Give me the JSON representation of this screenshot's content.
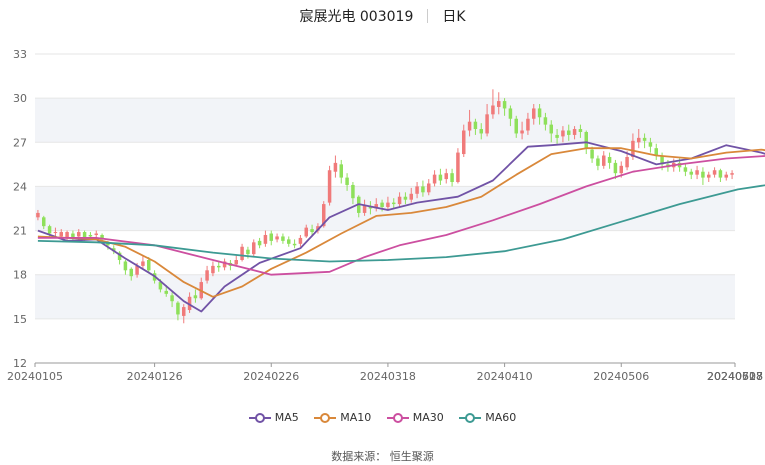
{
  "header": {
    "name": "宸展光电 003019",
    "period": "日K"
  },
  "legend": [
    {
      "label": "MA5",
      "color": "#7153a6"
    },
    {
      "label": "MA10",
      "color": "#d9883a"
    },
    {
      "label": "MA30",
      "color": "#cc4fa0"
    },
    {
      "label": "MA60",
      "color": "#3d9a93"
    }
  ],
  "source": "数据来源： 恒生聚源",
  "colors": {
    "up": "#f07a7a",
    "down": "#8ee05a",
    "grid": "#e6e6e6",
    "band": "#f2f4f8"
  },
  "chart_data": {
    "type": "candlestick",
    "title": "宸展光电 003019 日K",
    "ylim": [
      12,
      33
    ],
    "yticks": [
      12,
      15,
      18,
      21,
      24,
      27,
      30,
      33
    ],
    "xtick_labels": [
      "20240105",
      "20240126",
      "20240226",
      "20240318",
      "20240410",
      "20240506",
      "20240527",
      "20240618",
      "20240708"
    ],
    "xtick_index": [
      0,
      20,
      40,
      60,
      80,
      100,
      120,
      140,
      160
    ],
    "candles": [
      [
        21.9,
        22.2,
        22.4,
        21.7
      ],
      [
        21.9,
        21.3,
        22.0,
        21.1
      ],
      [
        21.3,
        20.8,
        21.4,
        20.6
      ],
      [
        20.9,
        20.9,
        21.2,
        20.6
      ],
      [
        20.6,
        20.9,
        21.1,
        20.4
      ],
      [
        20.5,
        20.9,
        21.0,
        20.2
      ],
      [
        20.8,
        20.5,
        21.0,
        20.3
      ],
      [
        20.6,
        20.9,
        21.1,
        20.3
      ],
      [
        20.9,
        20.5,
        21.0,
        20.3
      ],
      [
        20.7,
        20.6,
        20.9,
        20.4
      ],
      [
        20.7,
        20.8,
        21.0,
        20.5
      ],
      [
        20.7,
        20.4,
        20.8,
        20.2
      ],
      [
        20.2,
        20.0,
        20.3,
        19.7
      ],
      [
        19.8,
        19.6,
        20.0,
        19.4
      ],
      [
        19.5,
        19.0,
        19.6,
        18.7
      ],
      [
        18.9,
        18.3,
        19.0,
        18.0
      ],
      [
        18.4,
        17.9,
        18.5,
        17.6
      ],
      [
        18.0,
        18.6,
        18.8,
        17.8
      ],
      [
        18.6,
        18.9,
        19.3,
        18.4
      ],
      [
        19.0,
        18.3,
        19.2,
        18.1
      ],
      [
        18.1,
        17.6,
        18.3,
        17.4
      ],
      [
        17.5,
        17.0,
        17.7,
        16.8
      ],
      [
        16.9,
        16.7,
        17.3,
        16.5
      ],
      [
        16.6,
        16.2,
        16.8,
        15.8
      ],
      [
        16.1,
        15.3,
        16.2,
        14.9
      ],
      [
        15.2,
        15.8,
        16.0,
        14.7
      ],
      [
        15.6,
        16.5,
        16.8,
        15.4
      ],
      [
        16.6,
        16.4,
        17.0,
        16.1
      ],
      [
        16.4,
        17.5,
        17.8,
        16.3
      ],
      [
        17.6,
        18.3,
        18.6,
        17.4
      ],
      [
        18.1,
        18.6,
        18.9,
        17.9
      ],
      [
        18.6,
        18.5,
        18.9,
        18.2
      ],
      [
        18.5,
        18.9,
        19.1,
        18.3
      ],
      [
        18.8,
        18.6,
        19.0,
        18.3
      ],
      [
        18.7,
        19.0,
        19.3,
        18.6
      ],
      [
        19.0,
        19.9,
        20.1,
        18.9
      ],
      [
        19.7,
        19.4,
        19.9,
        19.1
      ],
      [
        19.4,
        20.2,
        20.4,
        19.2
      ],
      [
        20.3,
        20.0,
        20.5,
        19.8
      ],
      [
        20.1,
        20.7,
        21.0,
        19.9
      ],
      [
        20.8,
        20.3,
        21.0,
        20.0
      ],
      [
        20.4,
        20.6,
        20.8,
        20.2
      ],
      [
        20.6,
        20.3,
        20.8,
        20.1
      ],
      [
        20.4,
        20.1,
        20.6,
        19.9
      ],
      [
        20.1,
        20.0,
        20.4,
        19.8
      ],
      [
        20.1,
        20.5,
        20.7,
        19.9
      ],
      [
        20.6,
        21.2,
        21.4,
        20.5
      ],
      [
        21.1,
        20.9,
        21.4,
        20.6
      ],
      [
        21.0,
        21.3,
        21.5,
        20.8
      ],
      [
        21.3,
        22.8,
        23.0,
        21.2
      ],
      [
        22.9,
        25.1,
        25.4,
        22.7
      ],
      [
        25.0,
        25.6,
        26.1,
        24.6
      ],
      [
        25.5,
        24.6,
        25.8,
        24.2
      ],
      [
        24.6,
        24.1,
        24.9,
        23.7
      ],
      [
        24.1,
        23.2,
        24.3,
        22.8
      ],
      [
        23.3,
        22.2,
        23.4,
        21.9
      ],
      [
        22.2,
        22.7,
        23.1,
        22.0
      ],
      [
        22.6,
        22.5,
        23.0,
        22.1
      ],
      [
        22.5,
        22.8,
        23.2,
        22.3
      ],
      [
        22.9,
        22.6,
        23.1,
        22.3
      ],
      [
        22.6,
        22.9,
        23.3,
        22.4
      ],
      [
        22.9,
        22.8,
        23.2,
        22.5
      ],
      [
        22.8,
        23.3,
        23.6,
        22.6
      ],
      [
        23.3,
        23.1,
        23.6,
        22.8
      ],
      [
        23.1,
        23.5,
        23.9,
        22.9
      ],
      [
        23.5,
        24.0,
        24.3,
        23.2
      ],
      [
        24.0,
        23.6,
        24.4,
        23.3
      ],
      [
        23.6,
        24.2,
        24.5,
        23.4
      ],
      [
        24.2,
        24.8,
        25.1,
        24.0
      ],
      [
        24.8,
        24.4,
        25.2,
        24.1
      ],
      [
        24.5,
        24.9,
        25.2,
        24.2
      ],
      [
        24.9,
        24.3,
        25.2,
        24.0
      ],
      [
        24.3,
        26.3,
        26.6,
        24.2
      ],
      [
        26.2,
        27.8,
        28.2,
        26.0
      ],
      [
        27.8,
        28.4,
        29.2,
        27.4
      ],
      [
        28.4,
        27.9,
        28.6,
        27.5
      ],
      [
        27.9,
        27.6,
        28.3,
        27.2
      ],
      [
        27.6,
        28.9,
        29.6,
        27.4
      ],
      [
        28.9,
        29.5,
        30.6,
        28.6
      ],
      [
        29.4,
        29.8,
        30.4,
        28.9
      ],
      [
        29.8,
        29.3,
        30.0,
        28.8
      ],
      [
        29.3,
        28.6,
        29.5,
        28.1
      ],
      [
        28.6,
        27.6,
        28.8,
        27.3
      ],
      [
        27.6,
        27.8,
        28.4,
        27.2
      ],
      [
        27.8,
        28.6,
        29.0,
        27.5
      ],
      [
        28.6,
        29.3,
        29.6,
        28.2
      ],
      [
        29.3,
        28.7,
        29.6,
        28.2
      ],
      [
        28.7,
        28.2,
        29.0,
        27.8
      ],
      [
        28.2,
        27.6,
        28.5,
        27.0
      ],
      [
        27.5,
        27.3,
        27.9,
        26.9
      ],
      [
        27.4,
        27.8,
        28.1,
        27.0
      ],
      [
        27.8,
        27.5,
        28.2,
        27.1
      ],
      [
        27.5,
        27.9,
        28.1,
        27.2
      ],
      [
        27.9,
        27.7,
        28.2,
        27.3
      ],
      [
        27.7,
        26.6,
        27.8,
        26.2
      ],
      [
        26.5,
        25.9,
        26.7,
        25.6
      ],
      [
        25.9,
        25.4,
        26.1,
        25.1
      ],
      [
        25.4,
        26.1,
        26.4,
        25.2
      ],
      [
        26.0,
        25.6,
        26.3,
        25.2
      ],
      [
        25.6,
        24.9,
        25.8,
        24.5
      ],
      [
        24.9,
        25.4,
        25.7,
        24.6
      ],
      [
        25.3,
        26.0,
        26.4,
        25.1
      ],
      [
        26.0,
        27.1,
        27.6,
        25.8
      ],
      [
        27.0,
        27.3,
        27.9,
        26.6
      ],
      [
        27.3,
        27.1,
        27.6,
        26.6
      ],
      [
        27.0,
        26.7,
        27.3,
        26.3
      ],
      [
        26.6,
        26.1,
        26.9,
        25.8
      ],
      [
        26.1,
        25.5,
        26.3,
        25.1
      ],
      [
        25.5,
        25.3,
        25.8,
        25.0
      ],
      [
        25.3,
        25.6,
        25.9,
        25.0
      ],
      [
        25.6,
        25.3,
        25.9,
        25.0
      ],
      [
        25.3,
        25.0,
        25.5,
        24.7
      ],
      [
        25.0,
        24.8,
        25.2,
        24.5
      ],
      [
        24.8,
        25.1,
        25.4,
        24.5
      ],
      [
        25.0,
        24.6,
        25.3,
        24.1
      ],
      [
        24.6,
        24.8,
        25.0,
        24.3
      ],
      [
        24.8,
        25.1,
        25.3,
        24.6
      ],
      [
        25.1,
        24.6,
        25.2,
        24.3
      ],
      [
        24.6,
        24.8,
        25.0,
        24.4
      ],
      [
        24.8,
        24.9,
        25.1,
        24.5
      ]
    ],
    "series": [
      {
        "name": "MA5",
        "color": "#7153a6",
        "points": [
          [
            0,
            21.0
          ],
          [
            5,
            20.3
          ],
          [
            10,
            20.4
          ],
          [
            15,
            19.1
          ],
          [
            20,
            17.9
          ],
          [
            25,
            16.2
          ],
          [
            28,
            15.5
          ],
          [
            32,
            17.2
          ],
          [
            38,
            18.8
          ],
          [
            45,
            19.8
          ],
          [
            50,
            21.9
          ],
          [
            55,
            22.8
          ],
          [
            60,
            22.4
          ],
          [
            65,
            22.9
          ],
          [
            72,
            23.3
          ],
          [
            78,
            24.4
          ],
          [
            84,
            26.7
          ],
          [
            88,
            26.8
          ],
          [
            94,
            27.0
          ],
          [
            100,
            26.4
          ],
          [
            106,
            25.5
          ],
          [
            112,
            25.9
          ],
          [
            118,
            26.8
          ],
          [
            124,
            26.3
          ],
          [
            130,
            25.5
          ],
          [
            136,
            25.3
          ],
          [
            160,
            24.9
          ]
        ]
      },
      {
        "name": "MA10",
        "color": "#d9883a",
        "points": [
          [
            0,
            20.6
          ],
          [
            5,
            20.5
          ],
          [
            10,
            20.4
          ],
          [
            15,
            19.9
          ],
          [
            20,
            18.9
          ],
          [
            25,
            17.5
          ],
          [
            30,
            16.5
          ],
          [
            35,
            17.2
          ],
          [
            40,
            18.4
          ],
          [
            46,
            19.5
          ],
          [
            52,
            20.8
          ],
          [
            58,
            22.0
          ],
          [
            64,
            22.2
          ],
          [
            70,
            22.6
          ],
          [
            76,
            23.3
          ],
          [
            82,
            24.8
          ],
          [
            88,
            26.2
          ],
          [
            94,
            26.6
          ],
          [
            100,
            26.6
          ],
          [
            106,
            26.1
          ],
          [
            112,
            25.9
          ],
          [
            118,
            26.3
          ],
          [
            124,
            26.5
          ],
          [
            130,
            26.1
          ],
          [
            136,
            25.6
          ],
          [
            142,
            25.3
          ],
          [
            160,
            25.1
          ]
        ]
      },
      {
        "name": "MA30",
        "color": "#cc4fa0",
        "points": [
          [
            0,
            20.5
          ],
          [
            10,
            20.5
          ],
          [
            20,
            20.0
          ],
          [
            30,
            19.0
          ],
          [
            40,
            18.0
          ],
          [
            50,
            18.2
          ],
          [
            56,
            19.2
          ],
          [
            62,
            20.0
          ],
          [
            70,
            20.7
          ],
          [
            78,
            21.7
          ],
          [
            86,
            22.8
          ],
          [
            94,
            24.0
          ],
          [
            102,
            25.0
          ],
          [
            110,
            25.5
          ],
          [
            118,
            25.9
          ],
          [
            126,
            26.1
          ],
          [
            134,
            26.2
          ],
          [
            142,
            26.0
          ],
          [
            150,
            25.7
          ],
          [
            160,
            25.5
          ]
        ]
      },
      {
        "name": "MA60",
        "color": "#3d9a93",
        "points": [
          [
            0,
            20.3
          ],
          [
            10,
            20.2
          ],
          [
            20,
            20.0
          ],
          [
            30,
            19.5
          ],
          [
            40,
            19.1
          ],
          [
            50,
            18.9
          ],
          [
            60,
            19.0
          ],
          [
            70,
            19.2
          ],
          [
            80,
            19.6
          ],
          [
            90,
            20.4
          ],
          [
            100,
            21.6
          ],
          [
            110,
            22.8
          ],
          [
            120,
            23.8
          ],
          [
            130,
            24.4
          ],
          [
            140,
            24.8
          ],
          [
            150,
            25.1
          ],
          [
            160,
            25.3
          ]
        ]
      }
    ]
  }
}
